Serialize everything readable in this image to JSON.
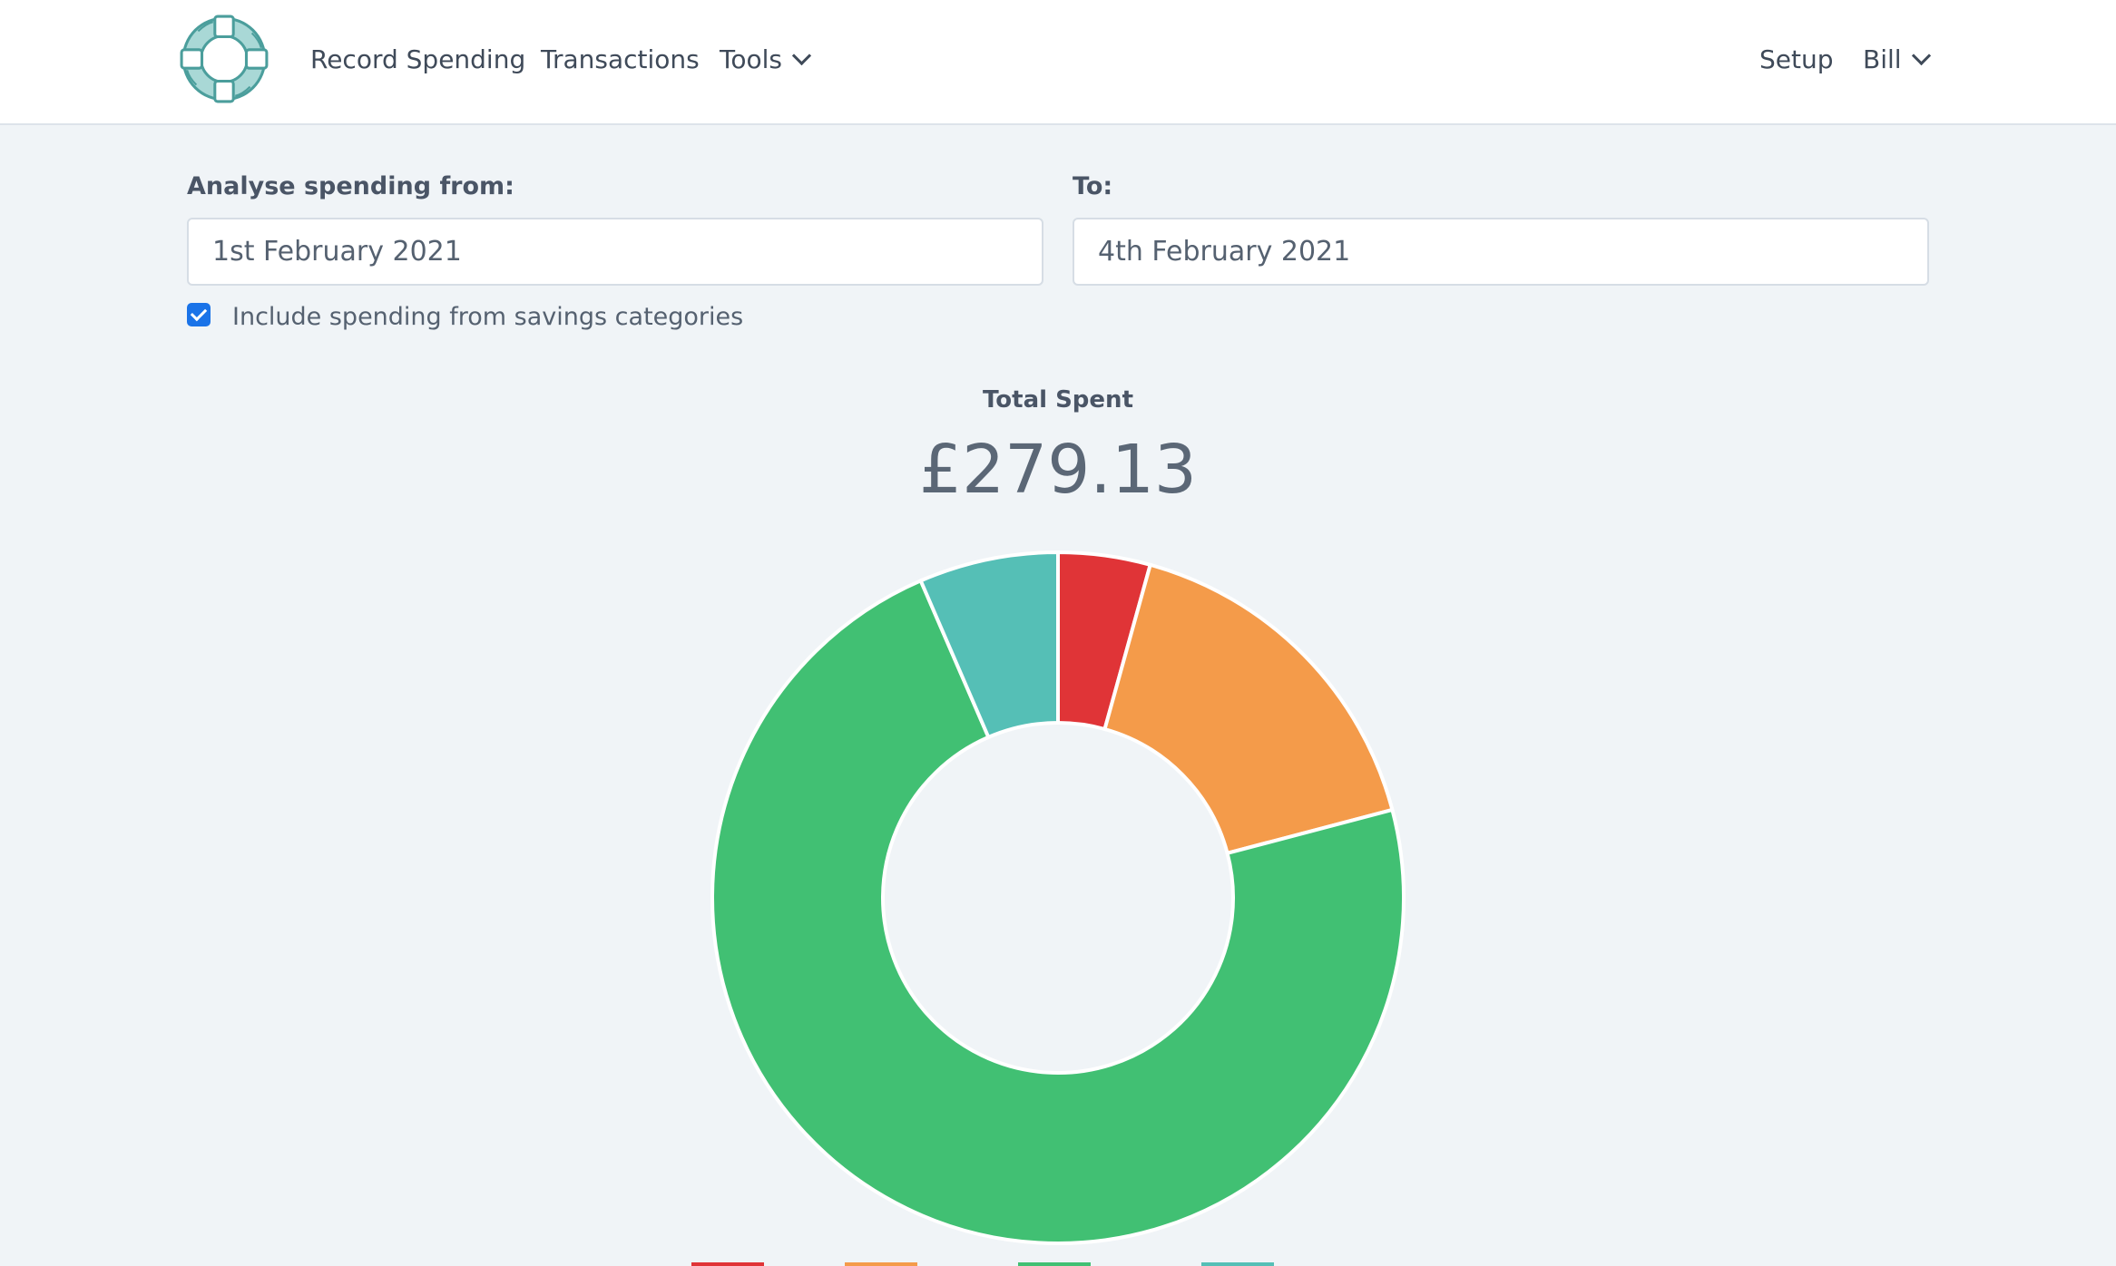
{
  "nav": {
    "logo_icon": "lifebuoy-icon",
    "record_spending": "Record Spending",
    "transactions": "Transactions",
    "tools": "Tools",
    "setup": "Setup",
    "user": "Bill"
  },
  "filters": {
    "from_label": "Analyse spending from:",
    "from_value": "1st February 2021",
    "to_label": "To:",
    "to_value": "4th February 2021",
    "include_savings_label": "Include spending from savings categories",
    "include_savings_checked": true
  },
  "summary": {
    "title": "Total Spent",
    "amount": "£279.13"
  },
  "chart_data": {
    "type": "pie",
    "donut": true,
    "values": [
      4.3,
      16.6,
      72.6,
      6.5
    ],
    "colors": [
      "#e03437",
      "#f49b4a",
      "#41c073",
      "#55bfb6"
    ]
  }
}
